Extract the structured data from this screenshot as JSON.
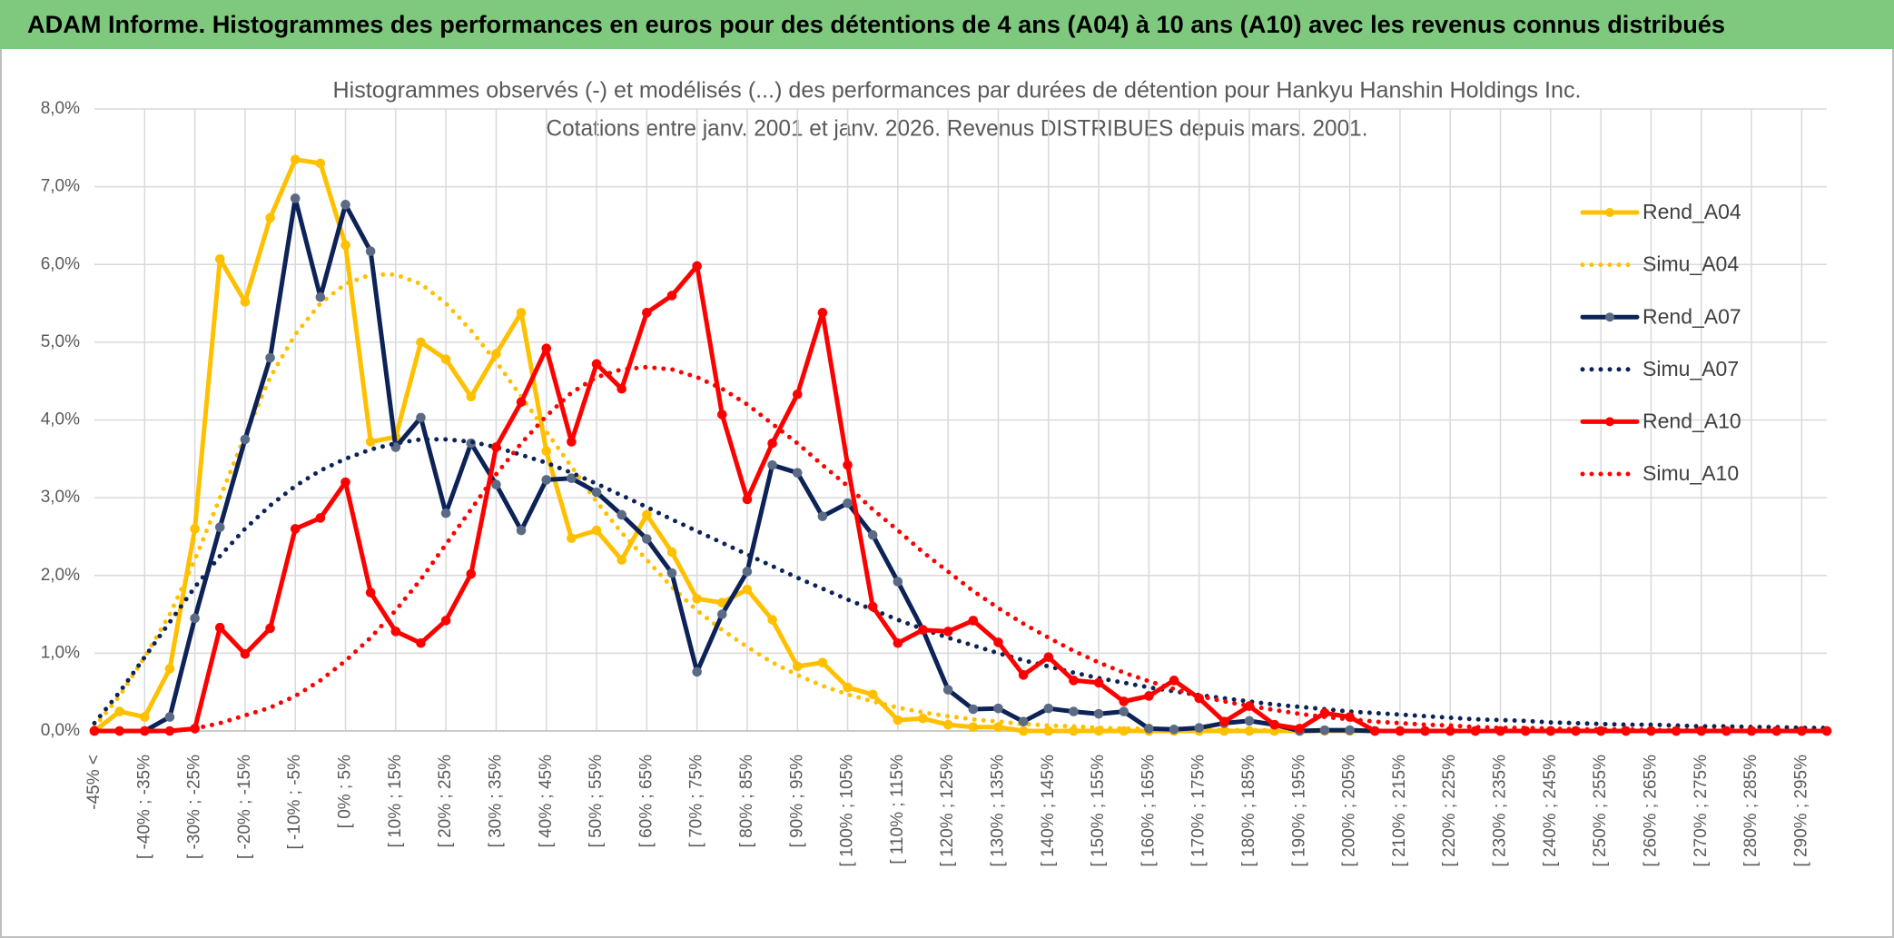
{
  "header": {
    "title": "ADAM Informe. Histogrammes des performances en euros pour des détentions de 4 ans (A04) à 10 ans (A10) avec les revenus connus distribués"
  },
  "chart_data": {
    "type": "line",
    "title": "Histogrammes observés (-) et modélisés (...) des performances par durées de détention pour Hankyu Hanshin Holdings Inc.",
    "subtitle": "Cotations entre janv. 2001 et janv. 2026. Revenus DISTRIBUES depuis mars. 2001.",
    "categories": [
      "-45% <",
      null,
      "[ -40% ; -35%",
      null,
      "[ -30% ; -25%",
      null,
      "[ -20% ; -15%",
      null,
      "[ -10% ; -5%",
      null,
      "[ 0% ; 5%",
      null,
      "[ 10% ; 15%",
      null,
      "[ 20% ; 25%",
      null,
      "[ 30% ; 35%",
      null,
      "[ 40% ; 45%",
      null,
      "[ 50% ; 55%",
      null,
      "[ 60% ; 65%",
      null,
      "[ 70% ; 75%",
      null,
      "[ 80% ; 85%",
      null,
      "[ 90% ; 95%",
      null,
      "[ 100% ; 105%",
      null,
      "[ 110% ; 115%",
      null,
      "[ 120% ; 125%",
      null,
      "[ 130% ; 135%",
      null,
      "[ 140% ; 145%",
      null,
      "[ 150% ; 155%",
      null,
      "[ 160% ; 165%",
      null,
      "[ 170% ; 175%",
      null,
      "[ 180% ; 185%",
      null,
      "[ 190% ; 195%",
      null,
      "[ 200% ; 205%",
      null,
      "[ 210% ; 215%",
      null,
      "[ 220% ; 225%",
      null,
      "[ 230% ; 235%",
      null,
      "[ 240% ; 245%",
      null,
      "[ 250% ; 255%",
      null,
      "[ 260% ; 265%",
      null,
      "[ 270% ; 275%",
      null,
      "[ 280% ; 285%",
      null,
      "[ 290% ; 295%",
      null
    ],
    "series": [
      {
        "name": "Rend_A04",
        "color": "#FFC000",
        "style": "solid",
        "markers": true,
        "marker_color": "#FFC000",
        "values": [
          0,
          0.25,
          0.18,
          0.8,
          2.6,
          6.07,
          5.52,
          6.6,
          7.35,
          7.3,
          6.25,
          3.72,
          3.78,
          5.0,
          4.78,
          4.3,
          4.85,
          5.38,
          3.6,
          2.48,
          2.58,
          2.2,
          2.78,
          2.3,
          1.7,
          1.65,
          1.82,
          1.43,
          0.83,
          0.88,
          0.56,
          0.47,
          0.14,
          0.16,
          0.08,
          0.05,
          0.05,
          0,
          0,
          0,
          0,
          0,
          0,
          0,
          0,
          0,
          0,
          0,
          0,
          0,
          0,
          0,
          0,
          0,
          0,
          0,
          0,
          0,
          0,
          0,
          0,
          0,
          0,
          0,
          0,
          0,
          0,
          0,
          0,
          0
        ]
      },
      {
        "name": "Simu_A04",
        "color": "#FFC000",
        "style": "dotted",
        "markers": false,
        "values": [
          0.05,
          0.45,
          0.95,
          1.5,
          2.2,
          3.0,
          3.8,
          4.55,
          5.1,
          5.5,
          5.75,
          5.87,
          5.87,
          5.75,
          5.5,
          5.15,
          4.75,
          4.3,
          3.85,
          3.4,
          2.95,
          2.55,
          2.2,
          1.85,
          1.55,
          1.3,
          1.08,
          0.88,
          0.72,
          0.58,
          0.47,
          0.38,
          0.3,
          0.24,
          0.19,
          0.15,
          0.12,
          0.09,
          0.07,
          0.06,
          0.04,
          0.03,
          0.03,
          0.02,
          0.02,
          0.01,
          0.01,
          0.01,
          0.01,
          0,
          0,
          0,
          0,
          0,
          0,
          0,
          0,
          0,
          0,
          0,
          0,
          0,
          0,
          0,
          0,
          0,
          0,
          0,
          0,
          0
        ]
      },
      {
        "name": "Rend_A07",
        "color": "#0D2357",
        "style": "solid",
        "markers": true,
        "marker_color": "#5B6B86",
        "values": [
          0,
          0,
          0,
          0.18,
          1.45,
          2.62,
          3.75,
          4.8,
          6.85,
          5.58,
          6.77,
          6.17,
          3.65,
          4.03,
          2.8,
          3.7,
          3.17,
          2.58,
          3.23,
          3.25,
          3.07,
          2.78,
          2.47,
          2.03,
          0.76,
          1.5,
          2.05,
          3.42,
          3.32,
          2.76,
          2.93,
          2.52,
          1.92,
          1.3,
          0.53,
          0.28,
          0.29,
          0.12,
          0.29,
          0.25,
          0.22,
          0.25,
          0.03,
          0.02,
          0.04,
          0.1,
          0.13,
          0.08,
          0,
          0.01,
          0.01,
          0,
          0,
          0,
          0,
          0,
          0,
          0,
          0,
          0,
          0,
          0,
          0,
          0,
          0,
          0,
          0,
          0,
          0,
          0
        ]
      },
      {
        "name": "Simu_A07",
        "color": "#0D2357",
        "style": "dotted",
        "markers": false,
        "values": [
          0.1,
          0.5,
          0.95,
          1.4,
          1.85,
          2.25,
          2.6,
          2.9,
          3.15,
          3.35,
          3.5,
          3.62,
          3.7,
          3.75,
          3.75,
          3.72,
          3.65,
          3.55,
          3.45,
          3.32,
          3.18,
          3.03,
          2.88,
          2.72,
          2.57,
          2.42,
          2.27,
          2.12,
          1.97,
          1.83,
          1.69,
          1.56,
          1.43,
          1.31,
          1.2,
          1.1,
          1.0,
          0.91,
          0.83,
          0.75,
          0.68,
          0.62,
          0.56,
          0.51,
          0.46,
          0.42,
          0.38,
          0.34,
          0.31,
          0.28,
          0.25,
          0.23,
          0.21,
          0.19,
          0.17,
          0.15,
          0.14,
          0.13,
          0.11,
          0.1,
          0.09,
          0.08,
          0.08,
          0.07,
          0.06,
          0.06,
          0.05,
          0.05,
          0.04,
          0.04
        ]
      },
      {
        "name": "Rend_A10",
        "color": "#FF0000",
        "style": "solid",
        "markers": true,
        "marker_color": "#FF0000",
        "values": [
          0,
          0,
          0,
          0,
          0.03,
          1.33,
          0.99,
          1.32,
          2.6,
          2.74,
          3.2,
          1.78,
          1.28,
          1.13,
          1.42,
          2.02,
          3.65,
          4.23,
          4.92,
          3.72,
          4.72,
          4.4,
          5.38,
          5.6,
          5.98,
          4.07,
          2.98,
          3.7,
          4.33,
          5.38,
          3.42,
          1.6,
          1.13,
          1.3,
          1.28,
          1.42,
          1.14,
          0.72,
          0.95,
          0.65,
          0.62,
          0.38,
          0.45,
          0.65,
          0.42,
          0.12,
          0.32,
          0.08,
          0.03,
          0.23,
          0.18,
          0,
          0,
          0,
          0,
          0,
          0,
          0,
          0,
          0,
          0,
          0,
          0,
          0,
          0,
          0,
          0,
          0,
          0,
          0
        ]
      },
      {
        "name": "Simu_A10",
        "color": "#FF0000",
        "style": "dotted",
        "markers": false,
        "values": [
          0,
          0,
          0,
          0,
          0.03,
          0.1,
          0.2,
          0.3,
          0.45,
          0.65,
          0.9,
          1.2,
          1.55,
          1.95,
          2.4,
          2.85,
          3.3,
          3.7,
          4.05,
          4.35,
          4.55,
          4.65,
          4.68,
          4.65,
          4.55,
          4.4,
          4.2,
          3.95,
          3.7,
          3.42,
          3.15,
          2.85,
          2.58,
          2.3,
          2.05,
          1.8,
          1.58,
          1.38,
          1.2,
          1.03,
          0.88,
          0.75,
          0.64,
          0.54,
          0.45,
          0.38,
          0.32,
          0.27,
          0.22,
          0.18,
          0.15,
          0.12,
          0.1,
          0.08,
          0.07,
          0.05,
          0.04,
          0.04,
          0.03,
          0.02,
          0.02,
          0.02,
          0.01,
          0.01,
          0.01,
          0.01,
          0.01,
          0,
          0,
          0
        ]
      }
    ],
    "ylim": [
      0,
      8
    ],
    "yticks": [
      {
        "value": 0,
        "label": "0,0%"
      },
      {
        "value": 1,
        "label": "1,0%"
      },
      {
        "value": 2,
        "label": "2,0%"
      },
      {
        "value": 3,
        "label": "3,0%"
      },
      {
        "value": 4,
        "label": "4,0%"
      },
      {
        "value": 5,
        "label": "5,0%"
      },
      {
        "value": 6,
        "label": "6,0%"
      },
      {
        "value": 7,
        "label": "7,0%"
      },
      {
        "value": 8,
        "label": "8,0%"
      }
    ],
    "grid": true,
    "legend": "right"
  }
}
